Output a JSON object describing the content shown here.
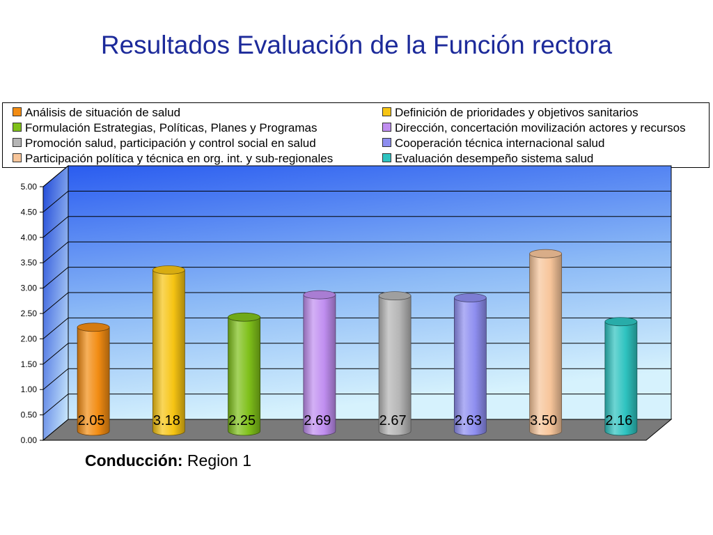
{
  "slide": {
    "title": "Resultados Evaluación de la Función rectora",
    "caption_bold": "Conducción:",
    "caption_text": " Region 1"
  },
  "chart_data": {
    "type": "bar",
    "three_d": true,
    "bar_shape": "cylinder",
    "ylim": [
      0,
      5
    ],
    "yticks": [
      "0.00",
      "0.50",
      "1.00",
      "1.50",
      "2.00",
      "2.50",
      "3.00",
      "3.50",
      "4.00",
      "4.50",
      "5.00"
    ],
    "grid": true,
    "legend_position": "top",
    "series": [
      {
        "name": "Análisis de situación de salud",
        "value": 2.05,
        "label": "2.05",
        "color": "#f28c13"
      },
      {
        "name": "Definición de prioridades y objetivos sanitarios",
        "value": 3.18,
        "label": "3.18",
        "color": "#f6c413"
      },
      {
        "name": "Formulación Estrategias, Políticas, Planes y Programas",
        "value": 2.25,
        "label": "2.25",
        "color": "#7fc01a"
      },
      {
        "name": "Dirección, concertación movilización actores y recursos",
        "value": 2.69,
        "label": "2.69",
        "color": "#c08ef0"
      },
      {
        "name": "Promoción salud, participación y control social en salud",
        "value": 2.67,
        "label": "2.67",
        "color": "#b5b5b5"
      },
      {
        "name": "Cooperación técnica internacional salud",
        "value": 2.63,
        "label": "2.63",
        "color": "#8e8ef0"
      },
      {
        "name": "Participación política y técnica en org. int. y sub-regionales",
        "value": 3.5,
        "label": "3.50",
        "color": "#f7c59a"
      },
      {
        "name": "Evaluación desempeño sistema salud",
        "value": 2.16,
        "label": "2.16",
        "color": "#2ec3c0"
      }
    ],
    "legend_order": [
      0,
      1,
      2,
      3,
      4,
      5,
      6,
      7
    ]
  }
}
